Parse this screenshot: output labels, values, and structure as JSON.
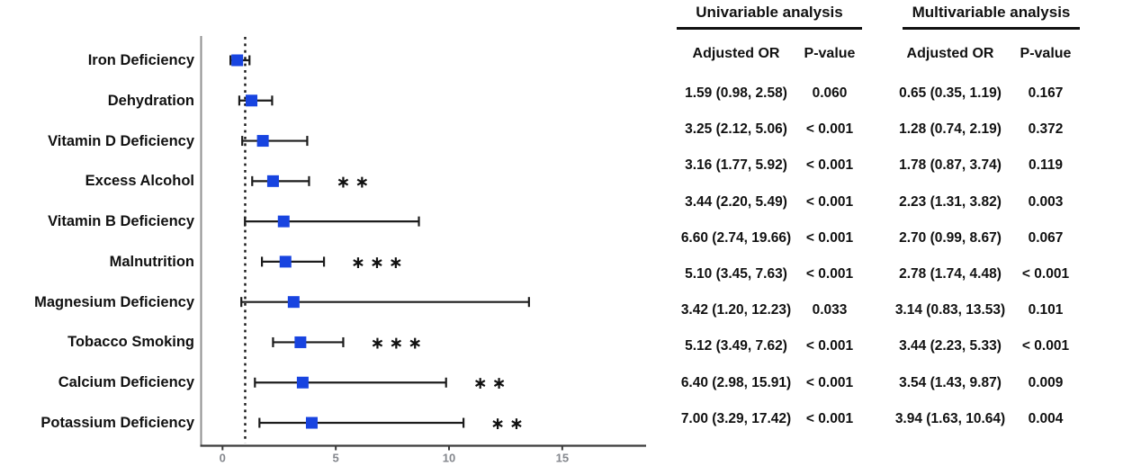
{
  "chart_data": {
    "type": "scatter",
    "subtype": "forest-plot",
    "title": "",
    "xlabel": "",
    "ylabel": "",
    "plotted_value": "Multivariable analysis adjusted OR with 95% CI",
    "x_tick_values": [
      0,
      5,
      10,
      15
    ],
    "x_tick_labels": [
      "0",
      "5",
      "10",
      "15"
    ],
    "x_range": [
      -0.95,
      18.7
    ],
    "reference_line_x": 1,
    "grid": false,
    "legend": null,
    "categories": [
      "Iron Deficiency",
      "Dehydration",
      "Vitamin D Deficiency",
      "Excess Alcohol",
      "Vitamin B Deficiency",
      "Malnutrition",
      "Magnesium Deficiency",
      "Tobacco Smoking",
      "Calcium Deficiency",
      "Potassium Deficiency"
    ],
    "rows": [
      {
        "label": "Iron Deficiency",
        "or": 0.65,
        "ci_low": 0.35,
        "ci_high": 1.19,
        "significance": ""
      },
      {
        "label": "Dehydration",
        "or": 1.28,
        "ci_low": 0.74,
        "ci_high": 2.19,
        "significance": ""
      },
      {
        "label": "Vitamin D Deficiency",
        "or": 1.78,
        "ci_low": 0.87,
        "ci_high": 3.74,
        "significance": ""
      },
      {
        "label": "Excess Alcohol",
        "or": 2.23,
        "ci_low": 1.31,
        "ci_high": 3.82,
        "significance": "**"
      },
      {
        "label": "Vitamin B Deficiency",
        "or": 2.7,
        "ci_low": 0.99,
        "ci_high": 8.67,
        "significance": ""
      },
      {
        "label": "Malnutrition",
        "or": 2.78,
        "ci_low": 1.74,
        "ci_high": 4.48,
        "significance": "***"
      },
      {
        "label": "Magnesium Deficiency",
        "or": 3.14,
        "ci_low": 0.83,
        "ci_high": 13.53,
        "significance": ""
      },
      {
        "label": "Tobacco Smoking",
        "or": 3.44,
        "ci_low": 2.23,
        "ci_high": 5.33,
        "significance": "***"
      },
      {
        "label": "Calcium Deficiency",
        "or": 3.54,
        "ci_low": 1.43,
        "ci_high": 9.87,
        "significance": "**"
      },
      {
        "label": "Potassium Deficiency",
        "or": 3.94,
        "ci_low": 1.63,
        "ci_high": 10.64,
        "significance": "**"
      }
    ],
    "colors": {
      "marker": "#1844e0",
      "error_bar": "#1c1c1c",
      "bottom_axis": "#3a3a3a",
      "left_axis": "#8f8f8f",
      "tick_label": "#84878d",
      "reference_line": "#151515"
    }
  },
  "table": {
    "groups": [
      {
        "title": "Univariable analysis",
        "columns": [
          "Adjusted OR",
          "P-value"
        ]
      },
      {
        "title": "Multivariable analysis",
        "columns": [
          "Adjusted OR",
          "P-value"
        ]
      }
    ],
    "rows": [
      {
        "label": "Iron Deficiency",
        "uni_or": "1.59 (0.98, 2.58)",
        "uni_p": "0.060",
        "multi_or": "0.65 (0.35, 1.19)",
        "multi_p": "0.167"
      },
      {
        "label": "Dehydration",
        "uni_or": "3.25 (2.12, 5.06)",
        "uni_p": "< 0.001",
        "multi_or": "1.28 (0.74, 2.19)",
        "multi_p": "0.372"
      },
      {
        "label": "Vitamin D Deficiency",
        "uni_or": "3.16 (1.77, 5.92)",
        "uni_p": "< 0.001",
        "multi_or": "1.78 (0.87, 3.74)",
        "multi_p": "0.119"
      },
      {
        "label": "Excess Alcohol",
        "uni_or": "3.44 (2.20, 5.49)",
        "uni_p": "< 0.001",
        "multi_or": "2.23 (1.31, 3.82)",
        "multi_p": "0.003"
      },
      {
        "label": "Vitamin B Deficiency",
        "uni_or": "6.60 (2.74, 19.66)",
        "uni_p": "< 0.001",
        "multi_or": "2.70 (0.99, 8.67)",
        "multi_p": "0.067"
      },
      {
        "label": "Malnutrition",
        "uni_or": "5.10 (3.45, 7.63)",
        "uni_p": "< 0.001",
        "multi_or": "2.78 (1.74, 4.48)",
        "multi_p": "< 0.001"
      },
      {
        "label": "Magnesium Deficiency",
        "uni_or": "3.42 (1.20, 12.23)",
        "uni_p": "0.033",
        "multi_or": "3.14 (0.83, 13.53)",
        "multi_p": "0.101"
      },
      {
        "label": "Tobacco Smoking",
        "uni_or": "5.12 (3.49, 7.62)",
        "uni_p": "< 0.001",
        "multi_or": "3.44 (2.23, 5.33)",
        "multi_p": "< 0.001"
      },
      {
        "label": "Calcium Deficiency",
        "uni_or": "6.40 (2.98, 15.91)",
        "uni_p": "< 0.001",
        "multi_or": "3.54 (1.43, 9.87)",
        "multi_p": "0.009"
      },
      {
        "label": "Potassium Deficiency",
        "uni_or": "7.00 (3.29, 17.42)",
        "uni_p": "< 0.001",
        "multi_or": "3.94 (1.63, 10.64)",
        "multi_p": "0.004"
      }
    ]
  }
}
